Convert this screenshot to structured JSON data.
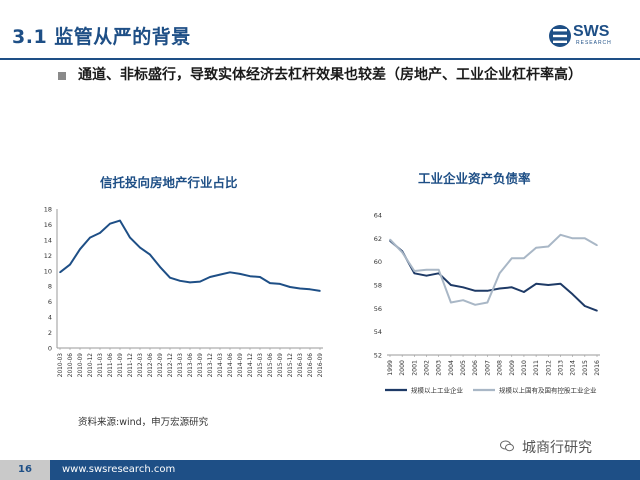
{
  "header": {
    "title": "3.1 监管从严的背景",
    "logo_text": "SWS",
    "logo_sub": "RESEARCH"
  },
  "bullet": "通道、非标盛行，导致实体经济去杠杆效果也较差（房地产、工业企业杠杆率高）",
  "chart_data": [
    {
      "type": "line",
      "title": "信托投向房地产行业占比",
      "categories": [
        "2010-03",
        "2010-06",
        "2010-09",
        "2010-12",
        "2011-03",
        "2011-06",
        "2011-09",
        "2011-12",
        "2012-03",
        "2012-06",
        "2012-09",
        "2012-12",
        "2013-03",
        "2013-06",
        "2013-09",
        "2013-12",
        "2014-03",
        "2014-06",
        "2014-09",
        "2014-12",
        "2015-03",
        "2015-06",
        "2015-09",
        "2015-12",
        "2016-03",
        "2016-06",
        "2016-09"
      ],
      "series": [
        {
          "values": [
            9.8,
            10.8,
            12.8,
            14.3,
            14.9,
            16.1,
            16.5,
            14.3,
            13.0,
            12.1,
            10.5,
            9.1,
            8.7,
            8.5,
            8.6,
            9.2,
            9.5,
            9.8,
            9.6,
            9.3,
            9.2,
            8.4,
            8.3,
            7.9,
            7.7,
            7.6,
            7.4
          ]
        }
      ],
      "ylim": [
        0,
        18
      ],
      "yticks": [
        0,
        2,
        4,
        6,
        8,
        10,
        12,
        14,
        16,
        18
      ],
      "color": "#1e4f86"
    },
    {
      "type": "line",
      "title": "工业企业资产负债率",
      "categories": [
        "1999",
        "2000",
        "2001",
        "2002",
        "2003",
        "2004",
        "2005",
        "2006",
        "2007",
        "2008",
        "2009",
        "2010",
        "2011",
        "2012",
        "2013",
        "2014",
        "2015",
        "2016"
      ],
      "series": [
        {
          "name": "规模以上工业企业",
          "color": "#1e3a66",
          "values": [
            61.8,
            60.9,
            59.0,
            58.8,
            59.0,
            58.0,
            57.8,
            57.5,
            57.5,
            57.7,
            57.8,
            57.4,
            58.1,
            58.0,
            58.1,
            57.2,
            56.2,
            55.8
          ]
        },
        {
          "name": "规模以上国有及国有控股工业企业",
          "color": "#a9b7c6",
          "values": [
            61.9,
            60.8,
            59.2,
            59.3,
            59.3,
            56.5,
            56.7,
            56.3,
            56.5,
            59.0,
            60.3,
            60.3,
            61.2,
            61.3,
            62.3,
            62.0,
            62.0,
            61.4
          ]
        }
      ],
      "ylim": [
        52,
        64
      ],
      "yticks": [
        52,
        54,
        56,
        58,
        60,
        62,
        64
      ]
    }
  ],
  "source": "资料来源:wind，申万宏源研究",
  "watermark": "城商行研究",
  "footer": {
    "page": "16",
    "url": "www.swsresearch.com"
  }
}
